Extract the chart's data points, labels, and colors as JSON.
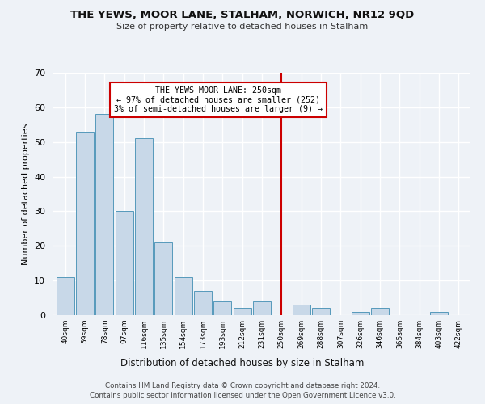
{
  "title1": "THE YEWS, MOOR LANE, STALHAM, NORWICH, NR12 9QD",
  "title2": "Size of property relative to detached houses in Stalham",
  "xlabel": "Distribution of detached houses by size in Stalham",
  "ylabel": "Number of detached properties",
  "bin_labels": [
    "40sqm",
    "59sqm",
    "78sqm",
    "97sqm",
    "116sqm",
    "135sqm",
    "154sqm",
    "173sqm",
    "193sqm",
    "212sqm",
    "231sqm",
    "250sqm",
    "269sqm",
    "288sqm",
    "307sqm",
    "326sqm",
    "346sqm",
    "365sqm",
    "384sqm",
    "403sqm",
    "422sqm"
  ],
  "bin_values": [
    11,
    53,
    58,
    30,
    51,
    21,
    11,
    7,
    4,
    2,
    4,
    0,
    3,
    2,
    0,
    1,
    2,
    0,
    0,
    1,
    0
  ],
  "bar_color": "#c8d8e8",
  "bar_edge_color": "#5599bb",
  "property_line_x": 11,
  "annotation_text": "THE YEWS MOOR LANE: 250sqm\n← 97% of detached houses are smaller (252)\n3% of semi-detached houses are larger (9) →",
  "annotation_box_color": "#cc0000",
  "ylim": [
    0,
    70
  ],
  "footnote1": "Contains HM Land Registry data © Crown copyright and database right 2024.",
  "footnote2": "Contains public sector information licensed under the Open Government Licence v3.0.",
  "background_color": "#eef2f7",
  "grid_color": "#ffffff"
}
